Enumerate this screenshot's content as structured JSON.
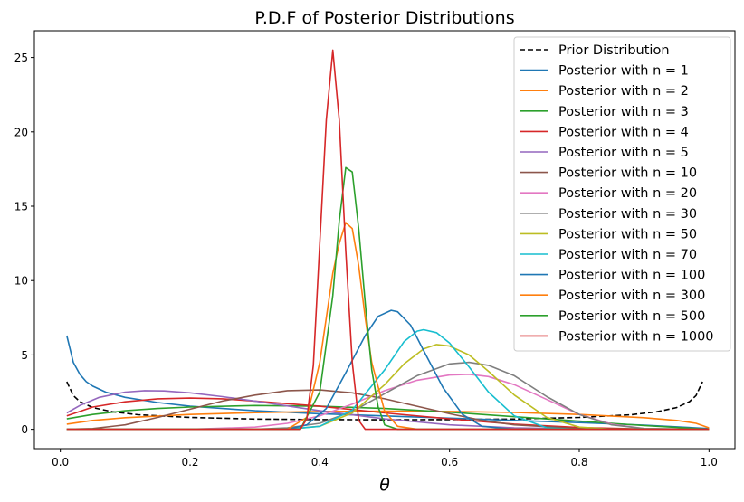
{
  "chart_data": {
    "type": "line",
    "title": "P.D.F of Posterior Distributions",
    "xlabel": "θ",
    "ylabel": "",
    "xlim": [
      -0.04,
      1.04
    ],
    "ylim": [
      -1.3,
      26.8
    ],
    "xticks": [
      0.0,
      0.2,
      0.4,
      0.6,
      0.8,
      1.0
    ],
    "xtick_labels": [
      "0.0",
      "0.2",
      "0.4",
      "0.6",
      "0.8",
      "1.0"
    ],
    "yticks": [
      0,
      5,
      10,
      15,
      20,
      25
    ],
    "ytick_labels": [
      "0",
      "5",
      "10",
      "15",
      "20",
      "25"
    ],
    "grid": false,
    "legend_position": "top-right",
    "series": [
      {
        "name": "Prior Distribution",
        "color": "#000000",
        "dash": true,
        "x": [
          0.01,
          0.02,
          0.03,
          0.05,
          0.08,
          0.12,
          0.2,
          0.3,
          0.4,
          0.5,
          0.6,
          0.7,
          0.8,
          0.88,
          0.92,
          0.95,
          0.97,
          0.98,
          0.99
        ],
        "y": [
          3.2,
          2.27,
          1.86,
          1.46,
          1.18,
          0.98,
          0.8,
          0.69,
          0.65,
          0.64,
          0.65,
          0.69,
          0.8,
          0.98,
          1.18,
          1.46,
          1.86,
          2.27,
          3.2
        ]
      },
      {
        "name": "Posterior with n = 1",
        "color": "#1f77b4",
        "x": [
          0.01,
          0.02,
          0.03,
          0.04,
          0.05,
          0.07,
          0.1,
          0.15,
          0.2,
          0.3,
          0.4,
          0.5,
          0.6,
          0.7,
          0.8,
          0.9,
          1.0
        ],
        "y": [
          6.3,
          4.5,
          3.7,
          3.2,
          2.9,
          2.5,
          2.15,
          1.8,
          1.55,
          1.25,
          1.05,
          0.9,
          0.75,
          0.6,
          0.45,
          0.28,
          0.05
        ]
      },
      {
        "name": "Posterior with n = 2",
        "color": "#ff7f0e",
        "x": [
          0.01,
          0.05,
          0.1,
          0.2,
          0.3,
          0.4,
          0.5,
          0.6,
          0.7,
          0.8,
          0.9,
          0.95,
          0.98,
          1.0
        ],
        "y": [
          0.35,
          0.6,
          0.78,
          1.0,
          1.12,
          1.2,
          1.22,
          1.2,
          1.13,
          1.0,
          0.78,
          0.6,
          0.4,
          0.1
        ]
      },
      {
        "name": "Posterior with n = 3",
        "color": "#2ca02c",
        "x": [
          0.01,
          0.05,
          0.1,
          0.15,
          0.2,
          0.3,
          0.4,
          0.5,
          0.6,
          0.7,
          0.8,
          0.9,
          1.0
        ],
        "y": [
          0.7,
          1.0,
          1.25,
          1.4,
          1.5,
          1.6,
          1.55,
          1.4,
          1.15,
          0.85,
          0.55,
          0.25,
          0.0
        ]
      },
      {
        "name": "Posterior with n = 4",
        "color": "#d62728",
        "x": [
          0.01,
          0.05,
          0.1,
          0.15,
          0.2,
          0.25,
          0.3,
          0.4,
          0.5,
          0.6,
          0.7,
          0.8,
          0.9,
          1.0
        ],
        "y": [
          0.9,
          1.5,
          1.85,
          2.05,
          2.1,
          2.05,
          1.9,
          1.55,
          1.1,
          0.7,
          0.35,
          0.12,
          0.02,
          0.0
        ]
      },
      {
        "name": "Posterior with n = 5",
        "color": "#9467bd",
        "x": [
          0.01,
          0.03,
          0.06,
          0.1,
          0.13,
          0.16,
          0.2,
          0.25,
          0.3,
          0.4,
          0.5,
          0.6,
          0.7,
          0.8,
          0.9,
          1.0
        ],
        "y": [
          1.1,
          1.6,
          2.15,
          2.5,
          2.6,
          2.58,
          2.45,
          2.2,
          1.9,
          1.25,
          0.7,
          0.3,
          0.1,
          0.02,
          0.0,
          0.0
        ]
      },
      {
        "name": "Posterior with n = 10",
        "color": "#8c564b",
        "x": [
          0.01,
          0.05,
          0.1,
          0.15,
          0.2,
          0.25,
          0.3,
          0.35,
          0.4,
          0.45,
          0.5,
          0.55,
          0.6,
          0.65,
          0.7,
          0.8,
          0.9,
          1.0
        ],
        "y": [
          0.0,
          0.05,
          0.3,
          0.8,
          1.35,
          1.9,
          2.3,
          2.6,
          2.65,
          2.45,
          2.05,
          1.55,
          1.05,
          0.6,
          0.3,
          0.05,
          0.0,
          0.0
        ]
      },
      {
        "name": "Posterior with n = 20",
        "color": "#e377c2",
        "x": [
          0.01,
          0.2,
          0.3,
          0.35,
          0.4,
          0.45,
          0.5,
          0.55,
          0.6,
          0.63,
          0.66,
          0.7,
          0.75,
          0.8,
          0.85,
          0.9,
          1.0
        ],
        "y": [
          0.0,
          0.0,
          0.15,
          0.4,
          0.9,
          1.7,
          2.6,
          3.3,
          3.65,
          3.7,
          3.55,
          3.0,
          2.0,
          1.0,
          0.35,
          0.05,
          0.0
        ]
      },
      {
        "name": "Posterior with n = 30",
        "color": "#7f7f7f",
        "x": [
          0.01,
          0.3,
          0.35,
          0.4,
          0.45,
          0.5,
          0.55,
          0.6,
          0.63,
          0.66,
          0.7,
          0.75,
          0.8,
          0.85,
          0.9,
          1.0
        ],
        "y": [
          0.0,
          0.0,
          0.1,
          0.4,
          1.2,
          2.4,
          3.6,
          4.4,
          4.5,
          4.3,
          3.6,
          2.2,
          1.0,
          0.3,
          0.05,
          0.0
        ]
      },
      {
        "name": "Posterior with n = 50",
        "color": "#bcbd22",
        "x": [
          0.01,
          0.35,
          0.4,
          0.45,
          0.5,
          0.53,
          0.56,
          0.58,
          0.6,
          0.63,
          0.66,
          0.7,
          0.75,
          0.8,
          0.85,
          1.0
        ],
        "y": [
          0.0,
          0.0,
          0.2,
          1.1,
          3.0,
          4.4,
          5.4,
          5.7,
          5.6,
          5.0,
          3.9,
          2.3,
          0.8,
          0.15,
          0.0,
          0.0
        ]
      },
      {
        "name": "Posterior with n = 70",
        "color": "#17becf",
        "x": [
          0.01,
          0.35,
          0.4,
          0.45,
          0.5,
          0.53,
          0.55,
          0.56,
          0.58,
          0.6,
          0.63,
          0.66,
          0.7,
          0.75,
          0.8,
          1.0
        ],
        "y": [
          0.0,
          0.0,
          0.2,
          1.3,
          4.0,
          5.9,
          6.6,
          6.7,
          6.5,
          5.8,
          4.2,
          2.5,
          0.9,
          0.1,
          0.0,
          0.0
        ]
      },
      {
        "name": "Posterior with n = 100",
        "color": "#1f77b4",
        "x": [
          0.01,
          0.35,
          0.38,
          0.41,
          0.44,
          0.47,
          0.49,
          0.51,
          0.52,
          0.54,
          0.56,
          0.59,
          0.62,
          0.65,
          0.7,
          1.0
        ],
        "y": [
          0.0,
          0.0,
          0.3,
          1.4,
          3.8,
          6.3,
          7.6,
          8.0,
          7.9,
          7.0,
          5.3,
          2.8,
          1.0,
          0.2,
          0.0,
          0.0
        ]
      },
      {
        "name": "Posterior with n = 300",
        "color": "#ff7f0e",
        "x": [
          0.01,
          0.35,
          0.38,
          0.4,
          0.42,
          0.43,
          0.44,
          0.45,
          0.46,
          0.47,
          0.48,
          0.5,
          0.52,
          0.55,
          1.0
        ],
        "y": [
          0.0,
          0.0,
          0.8,
          4.5,
          10.5,
          12.5,
          13.9,
          13.5,
          11.0,
          7.5,
          4.5,
          1.2,
          0.2,
          0.0,
          0.0
        ]
      },
      {
        "name": "Posterior with n = 500",
        "color": "#2ca02c",
        "x": [
          0.01,
          0.37,
          0.4,
          0.42,
          0.43,
          0.44,
          0.45,
          0.46,
          0.47,
          0.48,
          0.49,
          0.5,
          0.52,
          1.0
        ],
        "y": [
          0.0,
          0.0,
          2.5,
          9.0,
          14.0,
          17.6,
          17.3,
          13.5,
          8.5,
          4.0,
          1.5,
          0.3,
          0.0,
          0.0
        ]
      },
      {
        "name": "Posterior with n = 1000",
        "color": "#d62728",
        "x": [
          0.01,
          0.37,
          0.38,
          0.39,
          0.4,
          0.41,
          0.42,
          0.43,
          0.44,
          0.45,
          0.46,
          0.47,
          1.0
        ],
        "y": [
          0.0,
          0.0,
          0.7,
          4.3,
          12.5,
          20.8,
          25.5,
          20.8,
          12.0,
          4.5,
          0.6,
          0.0,
          0.0
        ]
      }
    ]
  }
}
